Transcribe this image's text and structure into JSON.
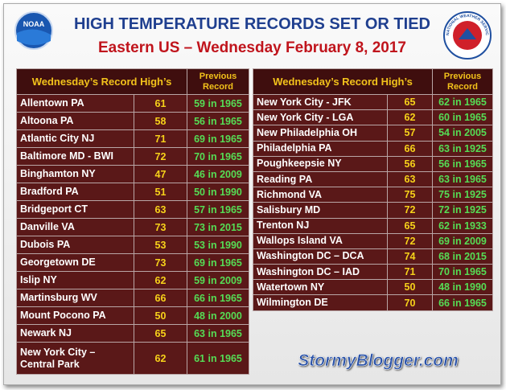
{
  "header": {
    "title": "HIGH TEMPERATURE RECORDS SET OR TIED",
    "subtitle": "Eastern US – Wednesday February 8, 2017",
    "noaa_logo": "NOAA",
    "nws_logo": "NATIONAL WEATHER SERVICE"
  },
  "tables": [
    {
      "columns": [
        "Wednesday’s Record High’s",
        "Previous Record"
      ],
      "rows": [
        [
          "Allentown PA",
          61,
          "59 in 1965"
        ],
        [
          "Altoona PA",
          58,
          "56 in 1965"
        ],
        [
          "Atlantic City NJ",
          71,
          "69 in 1965"
        ],
        [
          "Baltimore MD - BWI",
          72,
          "70 in 1965"
        ],
        [
          "Binghamton NY",
          47,
          "46 in 2009"
        ],
        [
          "Bradford PA",
          51,
          "50 in 1990"
        ],
        [
          "Bridgeport CT",
          63,
          "57 in 1965"
        ],
        [
          "Danville VA",
          73,
          "73 in 2015"
        ],
        [
          "Dubois PA",
          53,
          "53 in 1990"
        ],
        [
          "Georgetown DE",
          73,
          "69 in 1965"
        ],
        [
          "Islip NY",
          62,
          "59 in 2009"
        ],
        [
          "Martinsburg WV",
          66,
          "66 in 1965"
        ],
        [
          "Mount Pocono PA",
          50,
          "48 in 2000"
        ],
        [
          "Newark NJ",
          65,
          "63 in 1965"
        ],
        [
          "New York City  –\nCentral Park",
          62,
          "61 in 1965"
        ]
      ]
    },
    {
      "columns": [
        "Wednesday’s Record High’s",
        "Previous Record"
      ],
      "rows": [
        [
          "New York City - JFK",
          65,
          "62 in 1965"
        ],
        [
          "New York City - LGA",
          62,
          "60 in 1965"
        ],
        [
          "New Philadelphia OH",
          57,
          "54 in 2005"
        ],
        [
          "Philadelphia PA",
          66,
          "63 in 1925"
        ],
        [
          "Poughkeepsie NY",
          56,
          "56 in 1965"
        ],
        [
          "Reading PA",
          63,
          "63 in 1965"
        ],
        [
          "Richmond VA",
          75,
          "75 in 1925"
        ],
        [
          "Salisbury MD",
          72,
          "72 in 1925"
        ],
        [
          "Trenton NJ",
          65,
          "62 in 1933"
        ],
        [
          "Wallops Island VA",
          72,
          "69 in 2009"
        ],
        [
          "Washington DC – DCA",
          74,
          "68 in 2015"
        ],
        [
          "Washington DC – IAD",
          71,
          "70 in 1965"
        ],
        [
          "Watertown NY",
          50,
          "48 in 1990"
        ],
        [
          "Wilmington DE",
          70,
          "66 in 1965"
        ]
      ]
    }
  ],
  "footer": {
    "site": "StormyBlogger.com"
  }
}
